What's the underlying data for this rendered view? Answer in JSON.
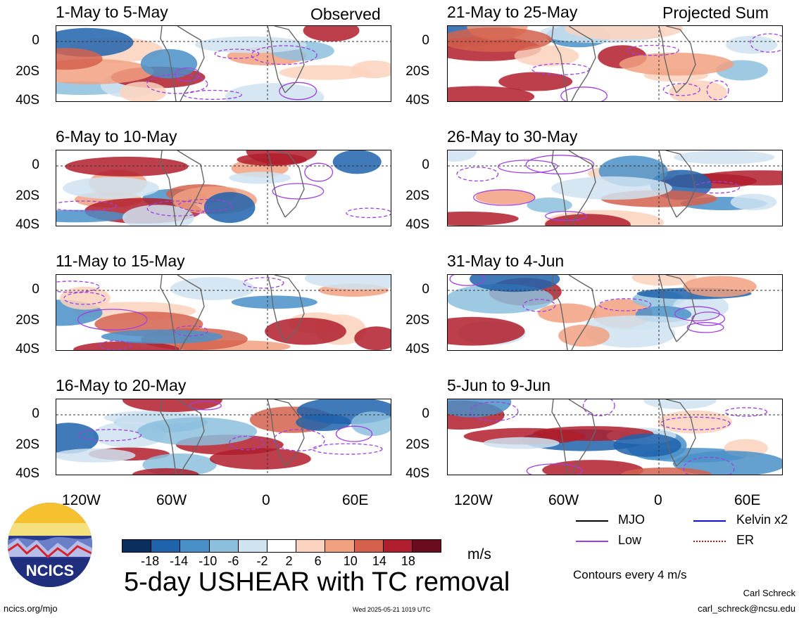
{
  "header": {
    "observed_label": "Observed",
    "projected_label": "Projected Sum"
  },
  "panels": [
    {
      "id": "p1",
      "title": "1-May to 5-May"
    },
    {
      "id": "p2",
      "title": "6-May to 10-May"
    },
    {
      "id": "p3",
      "title": "11-May to 15-May"
    },
    {
      "id": "p4",
      "title": "16-May to 20-May"
    },
    {
      "id": "p5",
      "title": "21-May to 25-May"
    },
    {
      "id": "p6",
      "title": "26-May to 30-May"
    },
    {
      "id": "p7",
      "title": "31-May to 4-Jun"
    },
    {
      "id": "p8",
      "title": "5-Jun to 9-Jun"
    }
  ],
  "axes": {
    "y_ticks": [
      "0",
      "20S",
      "40S"
    ],
    "x_ticks": [
      "120W",
      "60W",
      "0",
      "60E"
    ]
  },
  "colorbar": {
    "ticks": [
      "-18",
      "-14",
      "-10",
      "-6",
      "-2",
      "2",
      "6",
      "10",
      "14",
      "18"
    ],
    "colors": [
      "#0a2f5e",
      "#1f63ad",
      "#4a90c8",
      "#8cbfde",
      "#cfe3f1",
      "#ffffff",
      "#fbd2bd",
      "#f1a080",
      "#d5614d",
      "#b01d2c",
      "#6a0b1e"
    ],
    "units": "m/s"
  },
  "legend": {
    "items": [
      {
        "label": "MJO",
        "color": "#000000"
      },
      {
        "label": "Kelvin x2",
        "color": "#1010cc"
      },
      {
        "label": "Low",
        "color": "#a040e0"
      },
      {
        "label": "ER",
        "color": "#cc1010"
      }
    ],
    "contour_note": "Contours every 4 m/s"
  },
  "main_title": "5-day USHEAR with TC removal",
  "logo_text": "NCICS",
  "footer": {
    "url": "ncics.org/mjo",
    "timestamp": "Wed 2025-05-21 1019 UTC",
    "author": "Carl Schreck",
    "email": "carl_schreck@ncsu.edu"
  },
  "chart_data": {
    "type": "heatmap",
    "title": "5-day USHEAR with TC removal",
    "variable": "USHEAR",
    "units": "m/s",
    "x_ticks": [
      "120W",
      "60W",
      "0",
      "60E"
    ],
    "y_ticks": [
      "0",
      "20S",
      "40S"
    ],
    "color_levels": [
      -18,
      -14,
      -10,
      -6,
      -2,
      2,
      6,
      10,
      14,
      18
    ],
    "panels": [
      "1-May to 5-May",
      "6-May to 10-May",
      "11-May to 15-May",
      "16-May to 20-May",
      "21-May to 25-May",
      "26-May to 30-May",
      "31-May to 4-Jun",
      "5-Jun to 9-Jun"
    ]
  }
}
